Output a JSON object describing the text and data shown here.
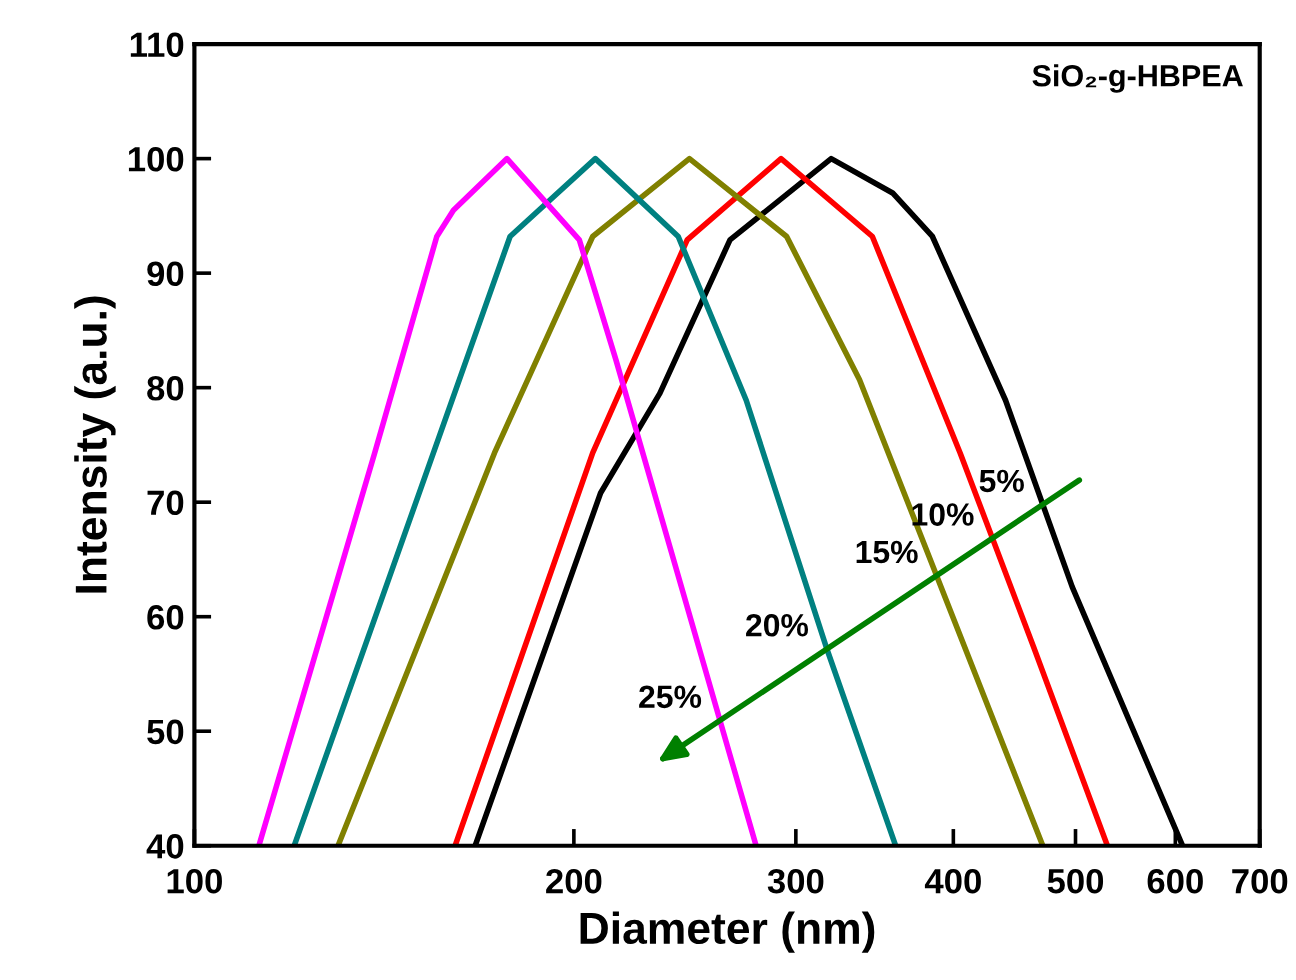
{
  "chart_data": {
    "type": "line",
    "title": "SiO₂-g-HBPEA",
    "xlabel": "Diameter (nm)",
    "ylabel": "Intensity (a.u.)",
    "log": "x",
    "xlim": [
      100,
      700
    ],
    "xticks": [
      100,
      200,
      300,
      400,
      500,
      600,
      700
    ],
    "ylim": [
      40,
      110
    ],
    "yticks": [
      40,
      50,
      60,
      70,
      80,
      90,
      100,
      110
    ],
    "grid": false,
    "legend": false,
    "marker": "none",
    "line_style": "solid",
    "series": [
      {
        "name": "5%",
        "color": "#000000",
        "x": [
          167,
          210,
          234,
          266,
          320,
          358,
          385,
          440,
          497,
          608
        ],
        "values": [
          40,
          70.8,
          79.5,
          92.9,
          100,
          97,
          93.2,
          78.9,
          62.6,
          40
        ]
      },
      {
        "name": "10%",
        "color": "#ff0000",
        "x": [
          161,
          207,
          246,
          292,
          345,
          405,
          463,
          530
        ],
        "values": [
          40,
          74.3,
          92.9,
          100,
          93.2,
          74.3,
          57.4,
          40
        ]
      },
      {
        "name": "15%",
        "color": "#808000",
        "x": [
          130,
          173,
          207,
          247,
          295,
          337,
          471
        ],
        "values": [
          40,
          74.3,
          93.2,
          100,
          93.2,
          80.7,
          40
        ]
      },
      {
        "name": "20%",
        "color": "#008080",
        "x": [
          120,
          178,
          208,
          242,
          274,
          317,
          360
        ],
        "values": [
          40,
          93.2,
          100,
          93.2,
          78.9,
          57.4,
          40
        ]
      },
      {
        "name": "25%",
        "color": "#ff00ff",
        "x": [
          112.5,
          139,
          155.7,
          160.5,
          177,
          202,
          216,
          279
        ],
        "values": [
          40,
          74.3,
          93.2,
          95.5,
          100,
          92.9,
          82.4,
          40
        ]
      }
    ]
  }
}
